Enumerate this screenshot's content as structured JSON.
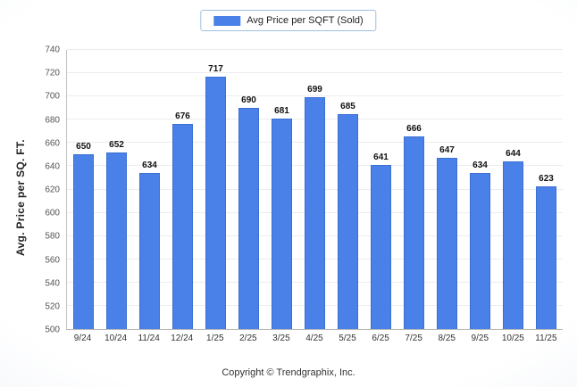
{
  "footer": "Copyright © Trendgraphix, Inc.",
  "chart_data": {
    "type": "bar",
    "title": "",
    "legend": "Avg Price per SQFT (Sold)",
    "legend_position": "top-center",
    "categories": [
      "9/24",
      "10/24",
      "11/24",
      "12/24",
      "1/25",
      "2/25",
      "3/25",
      "4/25",
      "5/25",
      "6/25",
      "7/25",
      "8/25",
      "9/25",
      "10/25",
      "11/25"
    ],
    "values": [
      650,
      652,
      634,
      676,
      717,
      690,
      681,
      699,
      685,
      641,
      666,
      647,
      634,
      644,
      623
    ],
    "xlabel": "",
    "ylabel": "Avg. Price per SQ. FT.",
    "ylim": [
      500,
      740
    ],
    "ytick_step": 20,
    "grid": true,
    "bar_color": "#4a81e8"
  }
}
